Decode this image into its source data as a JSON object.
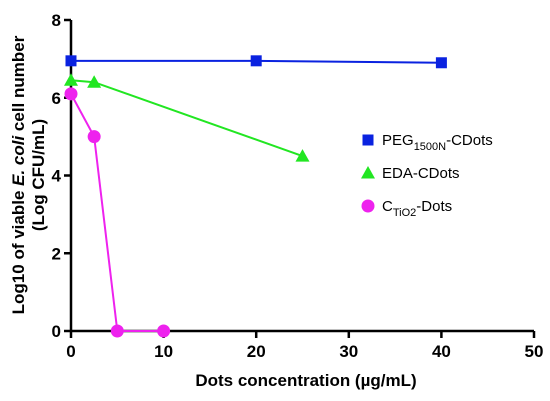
{
  "chart_data": {
    "type": "line",
    "xlabel": "Dots concentration (µg/mL)",
    "ylabel_line1_pre": "Log10 of viable ",
    "ylabel_line1_em": "E. coli",
    "ylabel_line1_post": " cell number",
    "ylabel_line2": "(Log CFU/mL)",
    "xlim": [
      0,
      50
    ],
    "ylim": [
      0,
      8
    ],
    "xticks": [
      0,
      10,
      20,
      30,
      40,
      50
    ],
    "yticks": [
      0,
      2,
      4,
      6,
      8
    ],
    "grid": false,
    "legend_position": "right",
    "series": [
      {
        "name_base": "PEG",
        "name_sub": "1500N",
        "name_post": "-CDots",
        "color": "#0a22e0",
        "marker": "square",
        "x": [
          0,
          20,
          40
        ],
        "y": [
          6.95,
          6.95,
          6.9
        ]
      },
      {
        "name_base": "EDA-CDots",
        "name_sub": "",
        "name_post": "",
        "color": "#22e622",
        "marker": "triangle",
        "x": [
          0,
          2.5,
          25
        ],
        "y": [
          6.45,
          6.4,
          4.5
        ]
      },
      {
        "name_base": "C",
        "name_sub": "TiO2",
        "name_post": "-Dots",
        "color": "#ee22ee",
        "marker": "circle",
        "x": [
          0,
          2.5,
          5,
          10
        ],
        "y": [
          6.1,
          5.0,
          0,
          0
        ]
      }
    ]
  }
}
